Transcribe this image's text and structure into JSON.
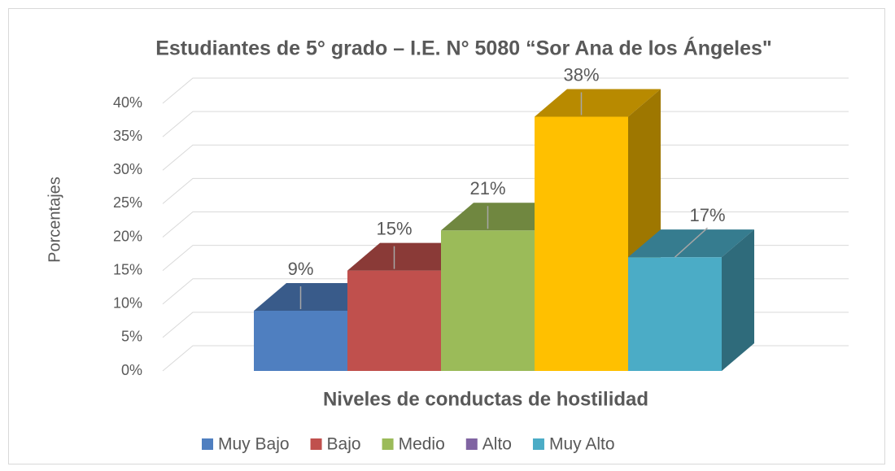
{
  "chart_data": {
    "type": "bar3d",
    "title": "Estudiantes de 5° grado – I.E. N° 5080 “Sor Ana de los Ángeles\"",
    "x_label": "Niveles de conductas de hostilidad",
    "y_label": "Porcentajes",
    "categories": [
      "Muy Bajo",
      "Bajo",
      "Medio",
      "Alto",
      "Muy Alto"
    ],
    "values": [
      9,
      15,
      21,
      38,
      17
    ],
    "value_labels": [
      "9%",
      "15%",
      "21%",
      "38%",
      "17%"
    ],
    "colors": [
      "#4f7fc0",
      "#c0504d",
      "#9bbb59",
      "#ffc000",
      "#4bacc6"
    ],
    "legend_colors": [
      "#4f7fc0",
      "#c0504d",
      "#9bbb59",
      "#8064a2",
      "#4bacc6"
    ],
    "ylim": [
      0,
      40
    ],
    "yticks": [
      {
        "value": 0,
        "label": "0%"
      },
      {
        "value": 5,
        "label": "5%"
      },
      {
        "value": 10,
        "label": "10%"
      },
      {
        "value": 15,
        "label": "15%"
      },
      {
        "value": 20,
        "label": "20%"
      },
      {
        "value": 25,
        "label": "25%"
      },
      {
        "value": 30,
        "label": "30%"
      },
      {
        "value": 35,
        "label": "35%"
      },
      {
        "value": 40,
        "label": "40%"
      }
    ],
    "grid": true,
    "legend": "bottom"
  }
}
